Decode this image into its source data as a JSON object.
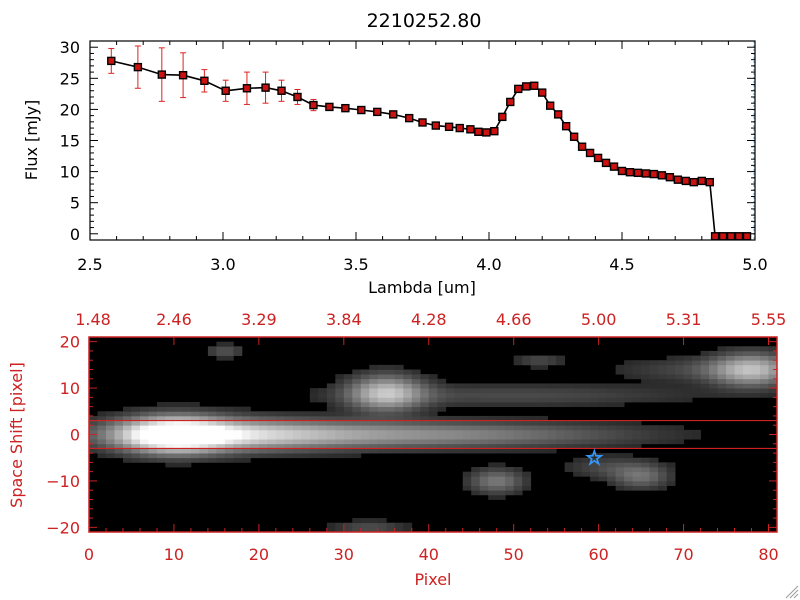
{
  "chart_data": [
    {
      "type": "line",
      "title": "2210252.80",
      "xlabel": "Lambda [um]",
      "ylabel": "Flux [mJy]",
      "xlim": [
        2.5,
        5.0
      ],
      "ylim": [
        -1,
        31
      ],
      "xticks": [
        2.5,
        3.0,
        3.5,
        4.0,
        4.5,
        5.0
      ],
      "xtick_labels": [
        "2.5",
        "3.0",
        "3.5",
        "4.0",
        "4.5",
        "5.0"
      ],
      "yticks": [
        0,
        5,
        10,
        15,
        20,
        25,
        30
      ],
      "ytick_labels": [
        "0",
        "5",
        "10",
        "15",
        "20",
        "25",
        "30"
      ],
      "line_color": "#000000",
      "marker_color": "#cc1111",
      "errorbar_color": "#dd2222",
      "series": [
        {
          "x": [
            2.58,
            2.68,
            2.77,
            2.85,
            2.93,
            3.01,
            3.09,
            3.16,
            3.22,
            3.28,
            3.34,
            3.4,
            3.46,
            3.52,
            3.58,
            3.64,
            3.7,
            3.75,
            3.8,
            3.85,
            3.89,
            3.93,
            3.96,
            3.99,
            4.02,
            4.05,
            4.08,
            4.11,
            4.14,
            4.17,
            4.2,
            4.23,
            4.26,
            4.29,
            4.32,
            4.35,
            4.38,
            4.41,
            4.44,
            4.47,
            4.5,
            4.53,
            4.56,
            4.59,
            4.62,
            4.65,
            4.68,
            4.71,
            4.74,
            4.77,
            4.8,
            4.83
          ],
          "y": [
            27.8,
            26.8,
            25.6,
            25.5,
            24.6,
            23.0,
            23.4,
            23.5,
            23.0,
            22.0,
            20.7,
            20.4,
            20.2,
            19.9,
            19.6,
            19.2,
            18.6,
            17.9,
            17.4,
            17.2,
            17.0,
            16.8,
            16.4,
            16.3,
            16.5,
            18.8,
            21.2,
            23.3,
            23.7,
            23.8,
            22.7,
            20.6,
            19.2,
            17.3,
            15.6,
            14.0,
            13.0,
            12.2,
            11.4,
            10.8,
            10.1,
            9.9,
            9.8,
            9.7,
            9.6,
            9.4,
            9.1,
            8.7,
            8.5,
            8.3,
            8.5,
            8.3
          ],
          "err": [
            2.0,
            3.4,
            4.3,
            3.6,
            1.8,
            1.7,
            2.6,
            2.5,
            1.7,
            1.2,
            0.9,
            0.5,
            0.5,
            0.5,
            0.5,
            0.5,
            0.5,
            0.5,
            0.5,
            0.5,
            0.5,
            0.5,
            0.5,
            0.5,
            0.5,
            0.5,
            0.5,
            0.5,
            0.5,
            0.5,
            0.5,
            0.5,
            0.5,
            0.5,
            0.5,
            0.5,
            0.5,
            0.5,
            0.5,
            0.5,
            0.5,
            0.5,
            0.5,
            0.5,
            0.5,
            0.5,
            0.5,
            0.5,
            0.5,
            0.5,
            0.5,
            0.5
          ]
        },
        {
          "x": [
            2.58,
            2.68,
            2.77,
            2.85,
            2.93,
            3.01,
            3.09,
            3.16,
            3.22,
            3.28,
            3.34,
            3.4,
            3.46,
            3.52,
            3.58,
            3.64,
            3.7,
            3.75,
            3.8,
            3.85,
            3.89,
            3.93,
            3.96,
            3.99,
            4.02,
            4.05,
            4.08,
            4.11,
            4.14,
            4.17,
            4.2,
            4.23,
            4.26,
            4.29,
            4.32,
            4.35,
            4.38,
            4.41,
            4.44,
            4.47,
            4.5,
            4.53,
            4.56,
            4.59,
            4.62,
            4.65,
            4.68,
            4.71,
            4.74,
            4.77,
            4.8,
            4.83,
            4.85,
            4.88,
            4.91,
            4.94,
            4.97
          ],
          "y": [
            27.8,
            26.8,
            25.6,
            25.5,
            24.6,
            23.0,
            23.4,
            23.5,
            23.0,
            22.0,
            20.7,
            20.4,
            20.2,
            19.9,
            19.6,
            19.2,
            18.6,
            17.9,
            17.4,
            17.2,
            17.0,
            16.8,
            16.4,
            16.3,
            16.5,
            18.8,
            21.2,
            23.3,
            23.7,
            23.8,
            22.7,
            20.6,
            19.2,
            17.3,
            15.6,
            14.0,
            13.0,
            12.2,
            11.4,
            10.8,
            10.1,
            9.9,
            9.8,
            9.7,
            9.6,
            9.4,
            9.1,
            8.7,
            8.5,
            8.3,
            8.5,
            8.3,
            -0.4,
            -0.4,
            -0.4,
            -0.4,
            -0.4
          ]
        }
      ],
      "grid": false,
      "legend": false
    },
    {
      "type": "heatmap",
      "xlabel": "Pixel",
      "ylabel": "Space Shift [pixel]",
      "xlim": [
        0,
        81
      ],
      "ylim": [
        -21,
        21
      ],
      "xticks": [
        0,
        10,
        20,
        30,
        40,
        50,
        60,
        70,
        80
      ],
      "xtick_labels": [
        "0",
        "10",
        "20",
        "30",
        "40",
        "50",
        "60",
        "70",
        "80"
      ],
      "yticks": [
        -20,
        -10,
        0,
        10,
        20
      ],
      "ytick_labels": [
        "−20",
        "−10",
        "0",
        "10",
        "20"
      ],
      "top_axis_ticks": [
        0,
        10,
        20,
        30,
        40,
        50,
        60,
        70,
        80
      ],
      "top_axis_labels": [
        "1.48",
        "2.46",
        "3.29",
        "3.84",
        "4.28",
        "4.66",
        "5.00",
        "5.31",
        "5.55"
      ],
      "axis_color": "#cc2222",
      "extraction_lines_y": [
        3,
        -3
      ],
      "star_marker": {
        "x": 59.5,
        "y": -5,
        "color": "#3399ff"
      },
      "sources": [
        {
          "x": 10,
          "y": 0,
          "sx": 4.2,
          "sy": 2.6,
          "amp": 1.0
        },
        {
          "x": 16,
          "y": 0,
          "sx": 9,
          "sy": 2.3,
          "amp": 0.55
        },
        {
          "x": 30,
          "y": 0,
          "sx": 16,
          "sy": 2.0,
          "amp": 0.35
        },
        {
          "x": 48,
          "y": 0,
          "sx": 14,
          "sy": 1.8,
          "amp": 0.18
        },
        {
          "x": 35,
          "y": 9,
          "sx": 3.0,
          "sy": 2.6,
          "amp": 0.65
        },
        {
          "x": 50,
          "y": 8.5,
          "sx": 15,
          "sy": 1.6,
          "amp": 0.16
        },
        {
          "x": 78,
          "y": 14,
          "sx": 3.2,
          "sy": 2.4,
          "amp": 0.6
        },
        {
          "x": 72,
          "y": 14,
          "sx": 7,
          "sy": 1.8,
          "amp": 0.15
        },
        {
          "x": 48,
          "y": -10,
          "sx": 2.2,
          "sy": 1.8,
          "amp": 0.35
        },
        {
          "x": 65,
          "y": -9,
          "sx": 2.3,
          "sy": 1.8,
          "amp": 0.3
        },
        {
          "x": 61,
          "y": -7,
          "sx": 3.5,
          "sy": 1.6,
          "amp": 0.15
        },
        {
          "x": 16,
          "y": 18,
          "sx": 1.5,
          "sy": 1.0,
          "amp": 0.2
        },
        {
          "x": 33,
          "y": -20,
          "sx": 3,
          "sy": 1.0,
          "amp": 0.18
        },
        {
          "x": 53,
          "y": 16,
          "sx": 2,
          "sy": 1.0,
          "amp": 0.15
        }
      ]
    }
  ]
}
